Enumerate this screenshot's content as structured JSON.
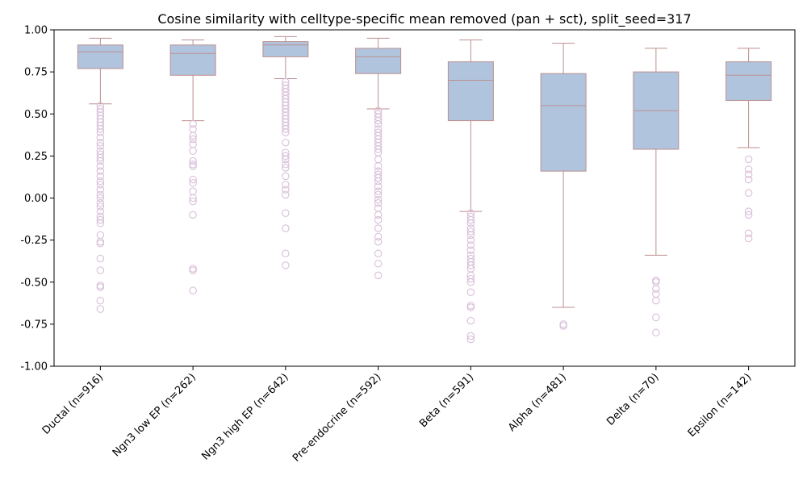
{
  "chart_data": {
    "type": "box",
    "title": "Cosine similarity with celltype-specific mean removed (pan + sct), split_seed=317",
    "xlabel": "",
    "ylabel": "",
    "ylim": [
      -1.0,
      1.0
    ],
    "yticks": [
      "-1.00",
      "-0.75",
      "-0.50",
      "-0.25",
      "0.00",
      "0.25",
      "0.50",
      "0.75",
      "1.00"
    ],
    "grid": false,
    "colors": {
      "box_fill": "#b0c4de",
      "box_edge": "#bc8f8f",
      "outlier_edge": "#d8bfd8"
    },
    "categories": [
      "Ductal (n=916)",
      "Ngn3 low EP (n=262)",
      "Ngn3 high EP (n=642)",
      "Pre-endocrine (n=592)",
      "Beta (n=591)",
      "Alpha (n=481)",
      "Delta (n=70)",
      "Epsilon (n=142)"
    ],
    "boxes": [
      {
        "whisker_low": 0.56,
        "q1": 0.77,
        "median": 0.87,
        "q3": 0.91,
        "whisker_high": 0.95,
        "outliers": [
          0.55,
          0.53,
          0.51,
          0.49,
          0.47,
          0.45,
          0.43,
          0.41,
          0.39,
          0.36,
          0.33,
          0.31,
          0.28,
          0.26,
          0.24,
          0.22,
          0.19,
          0.16,
          0.13,
          0.1,
          0.08,
          0.05,
          0.02,
          0.0,
          -0.03,
          -0.05,
          -0.08,
          -0.11,
          -0.13,
          -0.15,
          -0.22,
          -0.26,
          -0.27,
          -0.36,
          -0.43,
          -0.52,
          -0.53,
          -0.61,
          -0.66
        ]
      },
      {
        "whisker_low": 0.46,
        "q1": 0.73,
        "median": 0.86,
        "q3": 0.91,
        "whisker_high": 0.94,
        "outliers": [
          0.44,
          0.41,
          0.37,
          0.35,
          0.32,
          0.28,
          0.22,
          0.2,
          0.19,
          0.11,
          0.09,
          0.04,
          0.0,
          -0.02,
          -0.1,
          -0.42,
          -0.43,
          -0.55
        ]
      },
      {
        "whisker_low": 0.71,
        "q1": 0.84,
        "median": 0.91,
        "q3": 0.93,
        "whisker_high": 0.96,
        "outliers": [
          0.69,
          0.67,
          0.65,
          0.63,
          0.61,
          0.59,
          0.57,
          0.55,
          0.53,
          0.51,
          0.49,
          0.47,
          0.45,
          0.43,
          0.41,
          0.39,
          0.33,
          0.27,
          0.25,
          0.23,
          0.2,
          0.18,
          0.13,
          0.08,
          0.05,
          0.02,
          -0.09,
          -0.18,
          -0.33,
          -0.4
        ]
      },
      {
        "whisker_low": 0.53,
        "q1": 0.74,
        "median": 0.84,
        "q3": 0.89,
        "whisker_high": 0.95,
        "outliers": [
          0.52,
          0.5,
          0.48,
          0.46,
          0.44,
          0.41,
          0.39,
          0.37,
          0.35,
          0.33,
          0.31,
          0.29,
          0.27,
          0.23,
          0.19,
          0.16,
          0.14,
          0.12,
          0.1,
          0.07,
          0.04,
          0.02,
          -0.01,
          -0.03,
          -0.06,
          -0.1,
          -0.13,
          -0.18,
          -0.23,
          -0.26,
          -0.33,
          -0.39,
          -0.46
        ]
      },
      {
        "whisker_low": -0.08,
        "q1": 0.46,
        "median": 0.7,
        "q3": 0.81,
        "whisker_high": 0.94,
        "outliers": [
          -0.09,
          -0.11,
          -0.13,
          -0.15,
          -0.18,
          -0.2,
          -0.22,
          -0.25,
          -0.28,
          -0.31,
          -0.34,
          -0.36,
          -0.38,
          -0.4,
          -0.42,
          -0.46,
          -0.48,
          -0.5,
          -0.56,
          -0.64,
          -0.65,
          -0.73,
          -0.82,
          -0.84
        ]
      },
      {
        "whisker_low": -0.65,
        "q1": 0.16,
        "median": 0.55,
        "q3": 0.74,
        "whisker_high": 0.92,
        "outliers": [
          -0.75,
          -0.76
        ]
      },
      {
        "whisker_low": -0.34,
        "q1": 0.29,
        "median": 0.52,
        "q3": 0.75,
        "whisker_high": 0.89,
        "outliers": [
          -0.49,
          -0.5,
          -0.54,
          -0.57,
          -0.61,
          -0.71,
          -0.8
        ]
      },
      {
        "whisker_low": 0.3,
        "q1": 0.58,
        "median": 0.73,
        "q3": 0.81,
        "whisker_high": 0.89,
        "outliers": [
          0.23,
          0.17,
          0.14,
          0.11,
          0.03,
          -0.08,
          -0.1,
          -0.21,
          -0.24
        ]
      }
    ]
  }
}
